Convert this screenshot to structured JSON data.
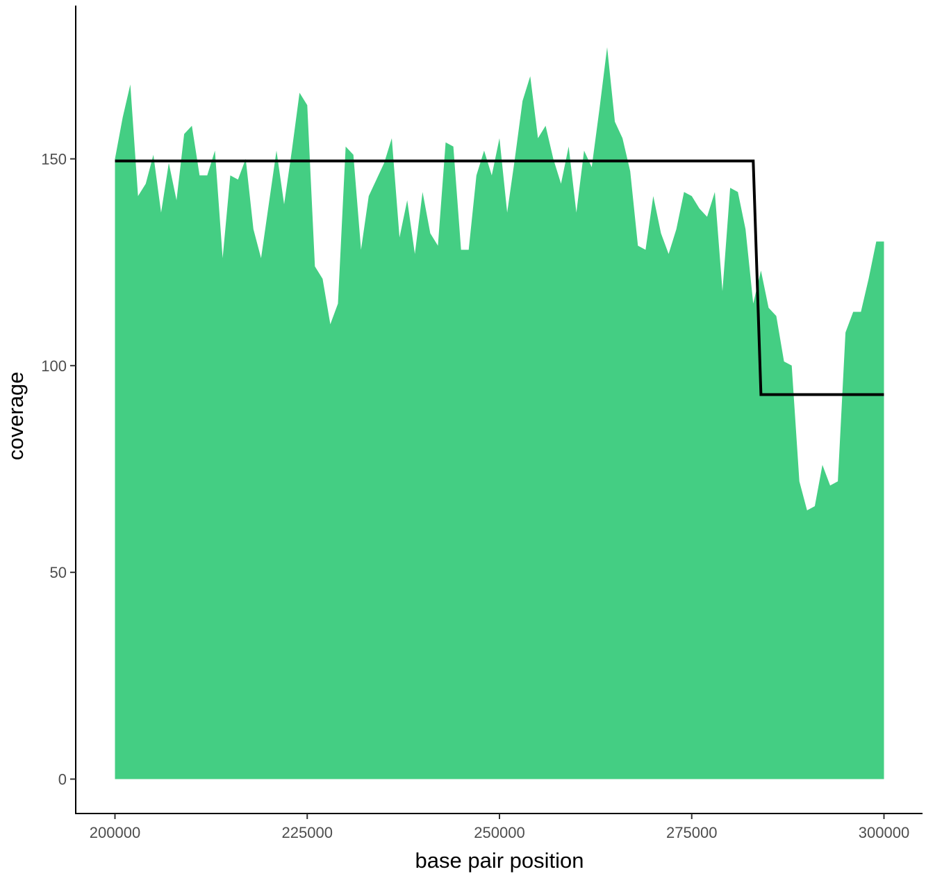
{
  "chart_data": {
    "type": "area",
    "xlabel": "base pair position",
    "ylabel": "coverage",
    "xlim": [
      190000,
      300000
    ],
    "ylim": [
      -8,
      178
    ],
    "x_ticks": [
      200000,
      225000,
      250000,
      275000,
      300000
    ],
    "y_ticks": [
      0,
      50,
      100,
      150
    ],
    "grid": false,
    "legend": "none",
    "colors": {
      "area": "#44ce83",
      "segment_line": "#000000",
      "axis": "#000000"
    },
    "series": [
      {
        "type": "area",
        "x": [
          200000,
          201000,
          202000,
          203000,
          204000,
          205000,
          206000,
          207000,
          208000,
          209000,
          210000,
          211000,
          212000,
          213000,
          214000,
          215000,
          216000,
          217000,
          218000,
          219000,
          220000,
          221000,
          222000,
          223000,
          224000,
          225000,
          226000,
          227000,
          228000,
          229000,
          230000,
          231000,
          232000,
          233000,
          234000,
          235000,
          236000,
          237000,
          238000,
          239000,
          240000,
          241000,
          242000,
          243000,
          244000,
          245000,
          246000,
          247000,
          248000,
          249000,
          250000,
          251000,
          252000,
          253000,
          254000,
          255000,
          256000,
          257000,
          258000,
          259000,
          260000,
          261000,
          262000,
          263000,
          264000,
          265000,
          266000,
          267000,
          268000,
          269000,
          270000,
          271000,
          272000,
          273000,
          274000,
          275000,
          276000,
          277000,
          278000,
          279000,
          280000,
          281000,
          282000,
          283000,
          284000,
          285000,
          286000,
          287000,
          288000,
          289000,
          290000,
          291000,
          292000,
          293000,
          294000,
          295000,
          296000,
          297000,
          298000,
          299000,
          300000
        ],
        "values": [
          150,
          160,
          168,
          141,
          144,
          151,
          137,
          149,
          140,
          156,
          158,
          146,
          146,
          152,
          126,
          146,
          145,
          150,
          133,
          126,
          139,
          152,
          139,
          152,
          166,
          163,
          124,
          121,
          110,
          115,
          153,
          151,
          128,
          141,
          145,
          149,
          155,
          131,
          140,
          127,
          142,
          132,
          129,
          154,
          153,
          128,
          128,
          146,
          152,
          146,
          155,
          137,
          150,
          164,
          170,
          155,
          158,
          150,
          144,
          153,
          137,
          152,
          148,
          162,
          177,
          159,
          155,
          147,
          129,
          128,
          141,
          132,
          127,
          133,
          142,
          141,
          138,
          136,
          142,
          118,
          143,
          142,
          133,
          115,
          123,
          114,
          112,
          101,
          100,
          72,
          65,
          66,
          76,
          71,
          72,
          108,
          113,
          113,
          121,
          130,
          130
        ]
      },
      {
        "type": "step",
        "x": [
          200000,
          283000,
          284000,
          300000
        ],
        "values": [
          149.5,
          149.5,
          93,
          93
        ]
      }
    ]
  }
}
